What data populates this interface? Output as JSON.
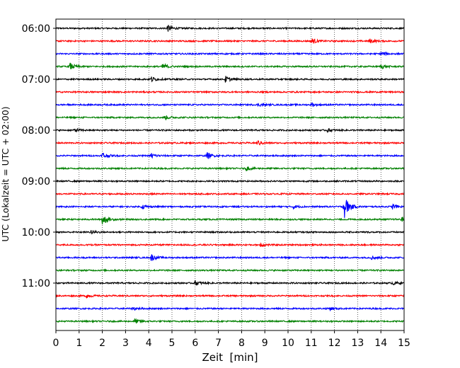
{
  "chart_data": {
    "type": "line",
    "xlabel": "Zeit  [min]",
    "ylabel": "UTC (Lokalzeit = UTC + 02:00)",
    "x_ticks": [
      "0",
      "1",
      "2",
      "3",
      "4",
      "5",
      "6",
      "7",
      "8",
      "9",
      "10",
      "11",
      "12",
      "13",
      "14",
      "15"
    ],
    "xlim": [
      0,
      15
    ],
    "y_tick_labels": [
      "06:00",
      "07:00",
      "08:00",
      "09:00",
      "10:00",
      "11:00"
    ],
    "grid": "vertical dotted",
    "trace_colors": [
      "#000000",
      "#ff0000",
      "#0000ff",
      "#008000"
    ],
    "trace_start_times": [
      "06:00",
      "06:15",
      "06:30",
      "06:45",
      "07:00",
      "07:15",
      "07:30",
      "07:45",
      "08:00",
      "08:15",
      "08:30",
      "08:45",
      "09:00",
      "09:15",
      "09:30",
      "09:45",
      "10:00",
      "10:15",
      "10:30",
      "10:45",
      "11:00",
      "11:15",
      "11:30",
      "11:45"
    ],
    "events": [
      {
        "trace": 0,
        "minute": 4.8,
        "amplitude": 0.45
      },
      {
        "trace": 1,
        "minute": 11.0,
        "amplitude": 0.4
      },
      {
        "trace": 1,
        "minute": 13.5,
        "amplitude": 0.3
      },
      {
        "trace": 2,
        "minute": 14.0,
        "amplitude": 0.3
      },
      {
        "trace": 3,
        "minute": 0.6,
        "amplitude": 0.45
      },
      {
        "trace": 3,
        "minute": 4.6,
        "amplitude": 0.45
      },
      {
        "trace": 3,
        "minute": 14.0,
        "amplitude": 0.3
      },
      {
        "trace": 4,
        "minute": 4.1,
        "amplitude": 0.35
      },
      {
        "trace": 4,
        "minute": 7.3,
        "amplitude": 0.4
      },
      {
        "trace": 6,
        "minute": 8.7,
        "amplitude": 0.2
      },
      {
        "trace": 6,
        "minute": 11.0,
        "amplitude": 0.2
      },
      {
        "trace": 7,
        "minute": 4.7,
        "amplitude": 0.25
      },
      {
        "trace": 8,
        "minute": 0.8,
        "amplitude": 0.25
      },
      {
        "trace": 8,
        "minute": 11.7,
        "amplitude": 0.2
      },
      {
        "trace": 9,
        "minute": 8.7,
        "amplitude": 0.3
      },
      {
        "trace": 10,
        "minute": 2.0,
        "amplitude": 0.5
      },
      {
        "trace": 10,
        "minute": 4.1,
        "amplitude": 0.35
      },
      {
        "trace": 10,
        "minute": 6.5,
        "amplitude": 0.4
      },
      {
        "trace": 11,
        "minute": 8.2,
        "amplitude": 0.25
      },
      {
        "trace": 14,
        "minute": 12.4,
        "amplitude": 1.7
      },
      {
        "trace": 14,
        "minute": 3.7,
        "amplitude": 0.3
      },
      {
        "trace": 14,
        "minute": 10.2,
        "amplitude": 0.25
      },
      {
        "trace": 14,
        "minute": 14.5,
        "amplitude": 0.3
      },
      {
        "trace": 15,
        "minute": 2.0,
        "amplitude": 0.8
      },
      {
        "trace": 15,
        "minute": 14.9,
        "amplitude": 0.3
      },
      {
        "trace": 16,
        "minute": 1.5,
        "amplitude": 0.25
      },
      {
        "trace": 17,
        "minute": 8.8,
        "amplitude": 0.3
      },
      {
        "trace": 18,
        "minute": 4.1,
        "amplitude": 0.45
      },
      {
        "trace": 18,
        "minute": 13.6,
        "amplitude": 0.25
      },
      {
        "trace": 20,
        "minute": 6.0,
        "amplitude": 0.3
      },
      {
        "trace": 20,
        "minute": 14.5,
        "amplitude": 0.25
      },
      {
        "trace": 21,
        "minute": 1.3,
        "amplitude": 0.25
      },
      {
        "trace": 22,
        "minute": 3.3,
        "amplitude": 0.25
      },
      {
        "trace": 22,
        "minute": 11.8,
        "amplitude": 0.25
      },
      {
        "trace": 23,
        "minute": 3.4,
        "amplitude": 0.3
      }
    ]
  }
}
